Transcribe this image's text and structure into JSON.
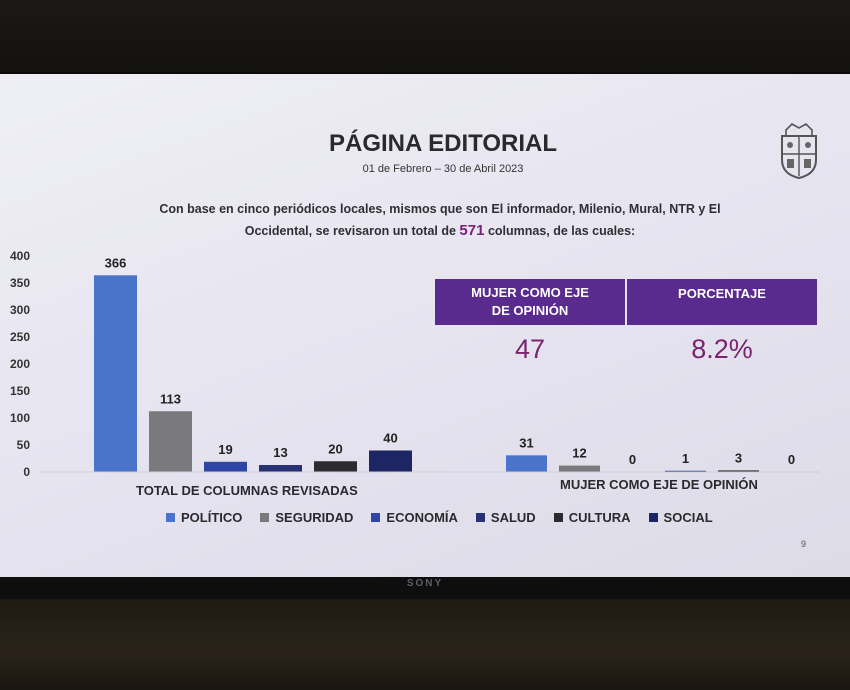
{
  "slide": {
    "title": "PÁGINA EDITORIAL",
    "date_range": "01 de Febrero – 30 de Abril 2023",
    "intro_line1": "Con base en cinco periódicos locales, mismos que son El informador, Milenio, Mural, NTR y El",
    "intro_line2_a": "Occidental, se revisaron un total de",
    "intro_total": "571",
    "intro_line2_b": "columnas, de las cuales:",
    "page_number": "9",
    "crest_icon": "university-crest-icon"
  },
  "monitor": {
    "brand": "SONY"
  },
  "kpi_table": {
    "headers": [
      "MUJER COMO EJE DE OPINIÓN",
      "PORCENTAJE"
    ],
    "values": [
      "47",
      "8.2%"
    ],
    "header_color": "#5a2b8e",
    "value_color": "#7a246d"
  },
  "chart_data": {
    "type": "bar",
    "ylim": [
      0,
      400
    ],
    "yticks": [
      "0",
      "50",
      "100",
      "150",
      "200",
      "250",
      "300",
      "350",
      "400"
    ],
    "legend": [
      {
        "name": "POLÍTICO",
        "color": "#4a74c9"
      },
      {
        "name": "SEGURIDAD",
        "color": "#7a7a7c"
      },
      {
        "name": "ECONOMÍA",
        "color": "#2f45a6"
      },
      {
        "name": "SALUD",
        "color": "#273173"
      },
      {
        "name": "CULTURA",
        "color": "#2c2c2e"
      },
      {
        "name": "SOCIAL",
        "color": "#1d2563"
      }
    ],
    "groups": [
      {
        "label": "TOTAL DE COLUMNAS REVISADAS",
        "values": [
          366,
          113,
          19,
          13,
          20,
          40
        ]
      },
      {
        "label": "MUJER COMO EJE DE OPINIÓN",
        "values": [
          31,
          12,
          0,
          1,
          3,
          0
        ]
      }
    ]
  }
}
